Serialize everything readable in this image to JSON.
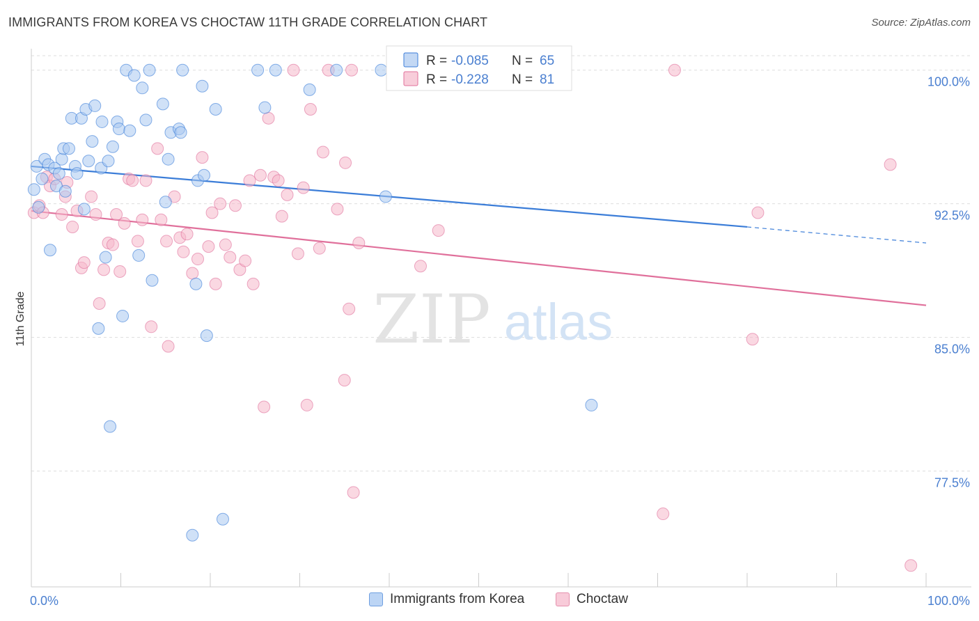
{
  "title": "IMMIGRANTS FROM KOREA VS CHOCTAW 11TH GRADE CORRELATION CHART",
  "source": "Source: ZipAtlas.com",
  "watermark": {
    "zip": "ZIP",
    "atlas": "atlas"
  },
  "colors": {
    "blue": "#3b7dd8",
    "blue_fill": "#a9c8f0",
    "pink": "#e0709b",
    "pink_fill": "#f5b8cb",
    "axis_text": "#4a7fd0",
    "grid": "#dddddd"
  },
  "legend": {
    "r_label": "R =",
    "n_label": "N =",
    "rows": [
      {
        "r": "-0.085",
        "n": "65"
      },
      {
        "r": "-0.228",
        "n": "81"
      }
    ]
  },
  "bottom_legend": [
    "Immigrants from Korea",
    "Choctaw"
  ],
  "chart_data": {
    "type": "scatter",
    "title": "IMMIGRANTS FROM KOREA VS CHOCTAW 11TH GRADE CORRELATION CHART",
    "xlabel": "",
    "ylabel": "11th Grade",
    "xlim": [
      0,
      100
    ],
    "ylim": [
      71.0,
      101.2
    ],
    "x_tick_labels": [
      "0.0%",
      "100.0%"
    ],
    "y_ticks": [
      77.5,
      85.0,
      92.5,
      100.0
    ],
    "y_tick_labels": [
      "77.5%",
      "85.0%",
      "92.5%",
      "100.0%"
    ],
    "grid": true,
    "legend_position": "top-center",
    "series": [
      {
        "name": "Immigrants from Korea",
        "r": -0.085,
        "n": 65,
        "trend": {
          "x": [
            0,
            80
          ],
          "y": [
            94.6,
            91.2
          ],
          "dashed_to": [
            100,
            90.3
          ]
        },
        "points": [
          [
            0.3,
            93.3
          ],
          [
            0.8,
            92.3
          ],
          [
            0.6,
            94.6
          ],
          [
            1.2,
            93.9
          ],
          [
            1.5,
            95.0
          ],
          [
            1.9,
            94.7
          ],
          [
            2.1,
            89.9
          ],
          [
            2.6,
            94.5
          ],
          [
            2.8,
            93.5
          ],
          [
            3.1,
            94.2
          ],
          [
            3.4,
            95.0
          ],
          [
            3.6,
            95.6
          ],
          [
            3.8,
            93.2
          ],
          [
            4.2,
            95.6
          ],
          [
            4.5,
            97.3
          ],
          [
            4.9,
            94.6
          ],
          [
            5.1,
            94.2
          ],
          [
            5.6,
            97.3
          ],
          [
            5.9,
            92.2
          ],
          [
            6.1,
            97.8
          ],
          [
            6.4,
            94.9
          ],
          [
            6.8,
            96.0
          ],
          [
            7.1,
            98.0
          ],
          [
            7.5,
            85.5
          ],
          [
            7.8,
            94.5
          ],
          [
            7.9,
            97.1
          ],
          [
            8.3,
            89.5
          ],
          [
            8.6,
            94.9
          ],
          [
            8.8,
            80.0
          ],
          [
            9.1,
            95.7
          ],
          [
            9.6,
            97.1
          ],
          [
            9.8,
            96.7
          ],
          [
            10.2,
            86.2
          ],
          [
            10.6,
            100.0
          ],
          [
            11.0,
            96.6
          ],
          [
            11.5,
            99.7
          ],
          [
            12.0,
            89.6
          ],
          [
            12.4,
            99.0
          ],
          [
            12.8,
            97.2
          ],
          [
            13.2,
            100.0
          ],
          [
            13.5,
            88.2
          ],
          [
            14.7,
            98.1
          ],
          [
            15.0,
            92.6
          ],
          [
            15.3,
            95.0
          ],
          [
            15.6,
            96.5
          ],
          [
            16.5,
            96.7
          ],
          [
            16.9,
            100.0
          ],
          [
            16.7,
            96.5
          ],
          [
            18.0,
            73.9
          ],
          [
            18.4,
            88.0
          ],
          [
            18.6,
            93.8
          ],
          [
            19.1,
            99.1
          ],
          [
            19.3,
            94.1
          ],
          [
            19.6,
            85.1
          ],
          [
            20.6,
            97.8
          ],
          [
            21.4,
            74.8
          ],
          [
            25.3,
            100.0
          ],
          [
            26.1,
            97.9
          ],
          [
            27.3,
            100.0
          ],
          [
            31.1,
            98.9
          ],
          [
            34.1,
            100.0
          ],
          [
            39.1,
            100.0
          ],
          [
            39.6,
            92.9
          ],
          [
            62.6,
            81.2
          ]
        ]
      },
      {
        "name": "Choctaw",
        "r": -0.228,
        "n": 81,
        "trend": {
          "x": [
            0,
            100
          ],
          "y": [
            92.1,
            86.8
          ]
        },
        "points": [
          [
            0.3,
            92.0
          ],
          [
            0.9,
            92.4
          ],
          [
            1.3,
            92.0
          ],
          [
            1.7,
            94.0
          ],
          [
            2.1,
            93.5
          ],
          [
            2.6,
            93.9
          ],
          [
            3.4,
            91.9
          ],
          [
            3.8,
            92.9
          ],
          [
            4.0,
            93.7
          ],
          [
            4.6,
            91.2
          ],
          [
            5.1,
            92.1
          ],
          [
            5.6,
            88.9
          ],
          [
            5.9,
            89.2
          ],
          [
            6.7,
            92.9
          ],
          [
            7.2,
            91.9
          ],
          [
            7.6,
            86.9
          ],
          [
            8.1,
            88.8
          ],
          [
            8.6,
            90.3
          ],
          [
            9.1,
            90.2
          ],
          [
            9.5,
            91.9
          ],
          [
            9.9,
            88.7
          ],
          [
            10.4,
            91.4
          ],
          [
            10.9,
            93.9
          ],
          [
            11.3,
            93.8
          ],
          [
            11.9,
            90.4
          ],
          [
            12.4,
            91.6
          ],
          [
            12.8,
            93.8
          ],
          [
            13.4,
            85.6
          ],
          [
            14.1,
            95.6
          ],
          [
            14.5,
            91.6
          ],
          [
            15.1,
            90.4
          ],
          [
            15.3,
            84.5
          ],
          [
            16.0,
            92.9
          ],
          [
            16.6,
            90.6
          ],
          [
            17.0,
            89.8
          ],
          [
            17.4,
            90.8
          ],
          [
            18.0,
            88.6
          ],
          [
            18.6,
            89.4
          ],
          [
            19.1,
            95.1
          ],
          [
            19.8,
            90.1
          ],
          [
            20.2,
            92.0
          ],
          [
            20.6,
            88.0
          ],
          [
            21.1,
            92.5
          ],
          [
            21.7,
            90.2
          ],
          [
            22.2,
            89.5
          ],
          [
            22.8,
            92.4
          ],
          [
            23.3,
            88.8
          ],
          [
            23.9,
            89.3
          ],
          [
            24.4,
            93.8
          ],
          [
            24.8,
            88.0
          ],
          [
            25.6,
            94.1
          ],
          [
            26.0,
            81.1
          ],
          [
            26.5,
            97.3
          ],
          [
            27.1,
            94.0
          ],
          [
            27.6,
            93.8
          ],
          [
            28.0,
            91.8
          ],
          [
            28.6,
            93.0
          ],
          [
            29.3,
            100.0
          ],
          [
            29.8,
            89.7
          ],
          [
            30.4,
            93.4
          ],
          [
            30.8,
            81.2
          ],
          [
            31.2,
            97.8
          ],
          [
            32.2,
            90.0
          ],
          [
            32.6,
            95.4
          ],
          [
            33.2,
            100.0
          ],
          [
            34.2,
            92.2
          ],
          [
            35.1,
            94.8
          ],
          [
            35.5,
            86.6
          ],
          [
            35.8,
            100.0
          ],
          [
            36.0,
            76.3
          ],
          [
            35.0,
            82.6
          ],
          [
            36.6,
            90.3
          ],
          [
            43.5,
            89.0
          ],
          [
            45.5,
            91.0
          ],
          [
            70.6,
            75.1
          ],
          [
            71.9,
            100.0
          ],
          [
            80.6,
            84.9
          ],
          [
            81.2,
            92.0
          ],
          [
            96.0,
            94.7
          ],
          [
            98.3,
            72.2
          ]
        ]
      }
    ]
  }
}
